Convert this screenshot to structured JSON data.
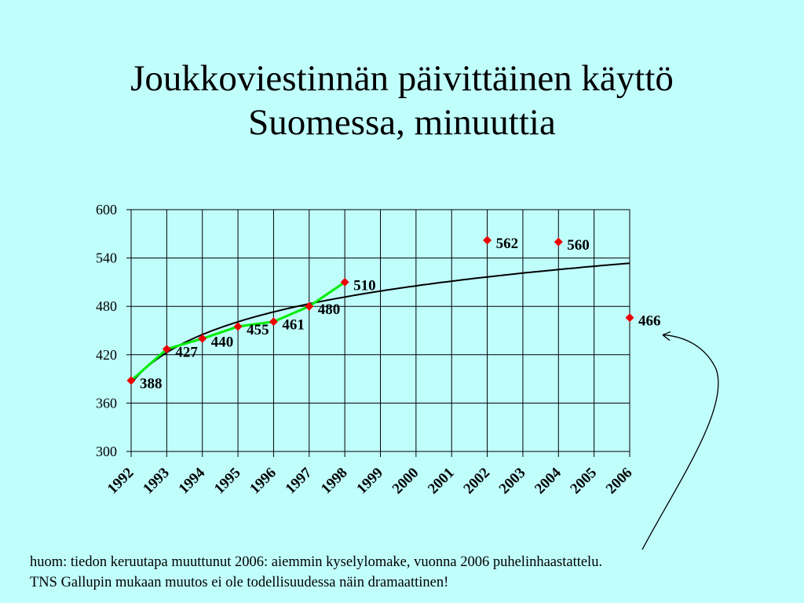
{
  "title_line1": "Joukkoviestinnän päivittäinen käyttö",
  "title_line2": "Suomessa, minuuttia",
  "note_line1": "huom: tiedon keruutapa muuttunut 2006: aiemmin kyselylomake, vuonna 2006 puhelinhaastattelu.",
  "note_line2": "TNS Gallupin mukaan muutos ei ole todellisuudessa näin dramaattinen!",
  "chart_data": {
    "type": "scatter",
    "categories": [
      "1992",
      "1993",
      "1994",
      "1995",
      "1996",
      "1997",
      "1998",
      "1999",
      "2000",
      "2001",
      "2002",
      "2003",
      "2004",
      "2005",
      "2006"
    ],
    "ylim": [
      300,
      600
    ],
    "yticks": [
      "300",
      "360",
      "420",
      "480",
      "540",
      "600"
    ],
    "grid": true,
    "points": [
      {
        "x": "1992",
        "y": 388,
        "label": "388"
      },
      {
        "x": "1993",
        "y": 427,
        "label": "427"
      },
      {
        "x": "1994",
        "y": 440,
        "label": "440"
      },
      {
        "x": "1995",
        "y": 455,
        "label": "455"
      },
      {
        "x": "1996",
        "y": 461,
        "label": "461"
      },
      {
        "x": "1997",
        "y": 480,
        "label": "480"
      },
      {
        "x": "1998",
        "y": 510,
        "label": "510"
      },
      {
        "x": "2002",
        "y": 562,
        "label": "562"
      },
      {
        "x": "2004",
        "y": 560,
        "label": "560"
      },
      {
        "x": "2006",
        "y": 466,
        "label": "466"
      }
    ],
    "connected_line": {
      "color": "#00ee00",
      "years": [
        "1992",
        "1993",
        "1994",
        "1995",
        "1996",
        "1997",
        "1998"
      ]
    },
    "trendline": {
      "type": "logarithmic",
      "color": "#000000"
    },
    "marker_color": "#ee0000",
    "annotation_arrow": {
      "target": "2006"
    }
  }
}
